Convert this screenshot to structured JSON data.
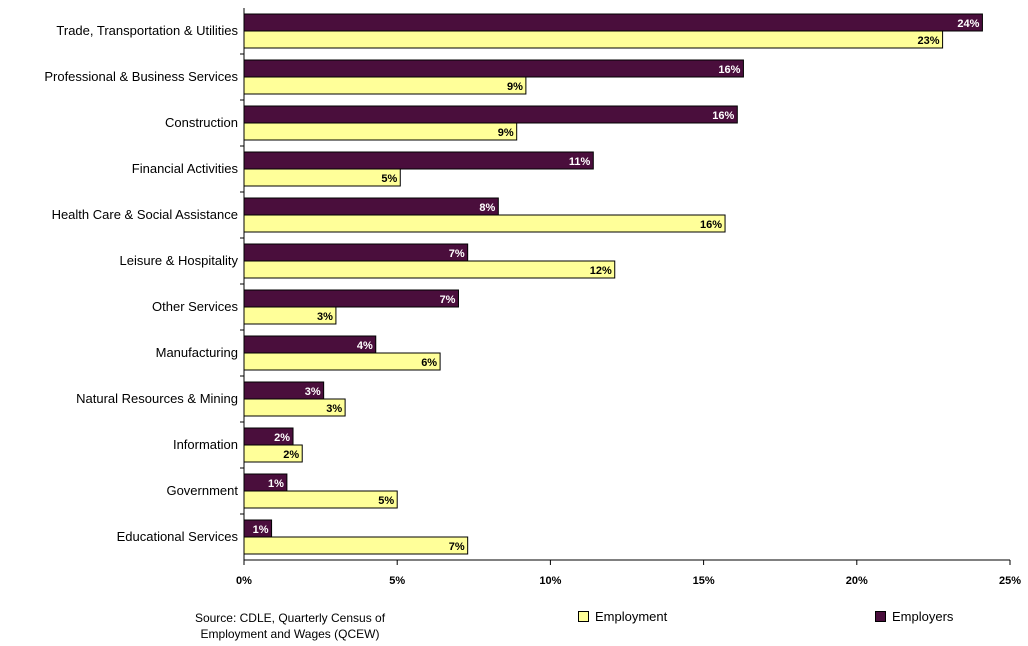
{
  "chart_data": {
    "type": "bar",
    "orientation": "horizontal",
    "categories": [
      "Trade, Transportation & Utilities",
      "Professional & Business Services",
      "Construction",
      "Financial Activities",
      "Health Care & Social Assistance",
      "Leisure & Hospitality",
      "Other Services",
      "Manufacturing",
      "Natural Resources & Mining",
      "Information",
      "Government",
      "Educational Services"
    ],
    "series": [
      {
        "name": "Employers",
        "color": "#4A0E3C",
        "label_color": "#ffffff",
        "values": [
          24.1,
          16.3,
          16.1,
          11.4,
          8.3,
          7.3,
          7.0,
          4.3,
          2.6,
          1.6,
          1.4,
          0.9
        ],
        "labels": [
          "24%",
          "16%",
          "16%",
          "11%",
          "8%",
          "7%",
          "7%",
          "4%",
          "3%",
          "2%",
          "1%",
          "1%"
        ]
      },
      {
        "name": "Employment",
        "color": "#FFFF99",
        "label_color": "#000000",
        "values": [
          22.8,
          9.2,
          8.9,
          5.1,
          15.7,
          12.1,
          3.0,
          6.4,
          3.3,
          1.9,
          5.0,
          7.3
        ],
        "labels": [
          "23%",
          "9%",
          "9%",
          "5%",
          "16%",
          "12%",
          "3%",
          "6%",
          "3%",
          "2%",
          "5%",
          "7%"
        ]
      }
    ],
    "xlim": [
      0,
      25
    ],
    "xticks": [
      "0%",
      "5%",
      "10%",
      "15%",
      "20%",
      "25%"
    ],
    "grid": false,
    "legend": [
      "Employment",
      "Employers"
    ]
  },
  "footer": {
    "source_line1": "Source: CDLE, Quarterly Census of",
    "source_line2": "Employment and Wages (QCEW)",
    "legend_employment": "Employment",
    "legend_employers": "Employers"
  }
}
